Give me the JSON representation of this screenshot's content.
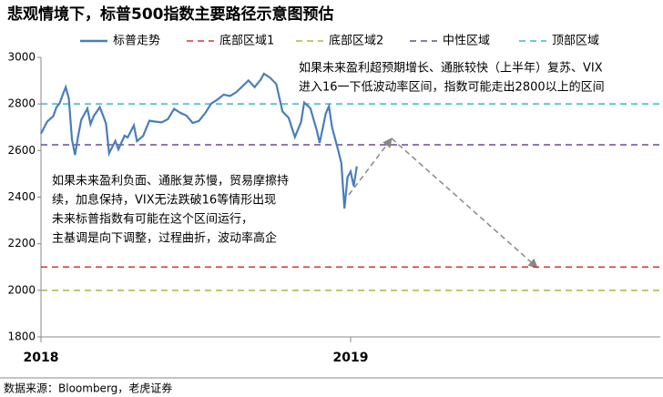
{
  "chart_data": {
    "type": "line",
    "title": "悲观情境下，标普500指数主要路径示意图预估",
    "source": "数据来源：Bloomberg，老虎证券",
    "xlim": [
      2018,
      2020
    ],
    "xticks": [
      2018,
      2019
    ],
    "ylim": [
      1800,
      3000
    ],
    "yticks": [
      1800,
      2000,
      2200,
      2400,
      2600,
      2800,
      3000
    ],
    "series": [
      {
        "name": "标普走势",
        "color": "#4a7ebb",
        "x": [
          2018.0,
          2018.02,
          2018.04,
          2018.05,
          2018.06,
          2018.07,
          2018.08,
          2018.09,
          2018.1,
          2018.11,
          2018.12,
          2018.13,
          2018.15,
          2018.16,
          2018.17,
          2018.19,
          2018.2,
          2018.21,
          2018.22,
          2018.24,
          2018.25,
          2018.27,
          2018.28,
          2018.3,
          2018.31,
          2018.33,
          2018.35,
          2018.37,
          2018.39,
          2018.41,
          2018.43,
          2018.45,
          2018.47,
          2018.49,
          2018.51,
          2018.53,
          2018.55,
          2018.57,
          2018.59,
          2018.61,
          2018.63,
          2018.65,
          2018.67,
          2018.69,
          2018.71,
          2018.72,
          2018.74,
          2018.76,
          2018.78,
          2018.8,
          2018.82,
          2018.84,
          2018.85,
          2018.87,
          2018.89,
          2018.9,
          2018.92,
          2018.93,
          2018.94,
          2018.96,
          2018.97,
          2018.98,
          2018.99,
          2019.0,
          2019.01,
          2019.02
        ],
        "values": [
          2673,
          2724,
          2748,
          2786,
          2802,
          2839,
          2872,
          2823,
          2648,
          2581,
          2662,
          2732,
          2780,
          2713,
          2747,
          2786,
          2752,
          2716,
          2588,
          2641,
          2605,
          2664,
          2656,
          2708,
          2640,
          2663,
          2728,
          2724,
          2721,
          2735,
          2779,
          2762,
          2750,
          2718,
          2727,
          2760,
          2802,
          2819,
          2840,
          2834,
          2850,
          2875,
          2901,
          2872,
          2905,
          2930,
          2913,
          2885,
          2768,
          2740,
          2658,
          2723,
          2806,
          2781,
          2690,
          2633,
          2760,
          2790,
          2700,
          2600,
          2546,
          2351,
          2486,
          2510,
          2447,
          2532
        ]
      }
    ],
    "reference_lines": [
      {
        "name": "底部区域1",
        "color": "#e03030",
        "value": 2100
      },
      {
        "name": "底部区域2",
        "color": "#a8b840",
        "value": 2000
      },
      {
        "name": "中性区域",
        "color": "#6a4a9a",
        "value": 2625
      },
      {
        "name": "顶部区域",
        "color": "#38b8c8",
        "value": 2800
      }
    ],
    "annotations": [
      [
        "如果未来盈利超预期增长、通胀较快（上半年）复苏、VIX",
        "进入16一下低波动率区间，指数可能走出2800以上的区间"
      ],
      [
        "如果未来盈利负面、通胀复苏慢，贸易摩擦持",
        "续，加息保持，VIX无法跌破16等情形出现",
        "未来标普指数有可能在这个区间运行，",
        "主基调是向下调整，过程曲折，波动率高企"
      ]
    ]
  }
}
